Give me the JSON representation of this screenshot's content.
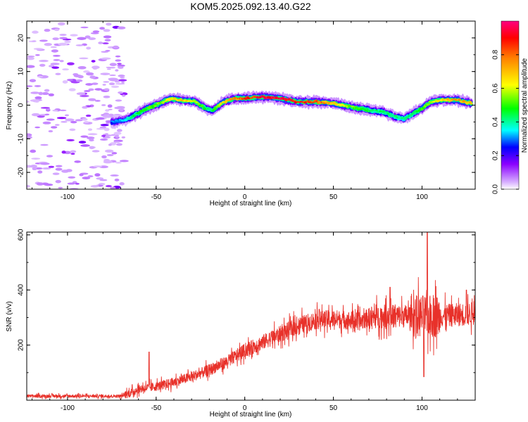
{
  "title": "KOM5.2025.092.13.40.G22",
  "chart_data": [
    {
      "type": "heatmap",
      "xlabel": "Height of straight line (km)",
      "ylabel": "Frequency (Hz)",
      "xlim": [
        -123,
        130
      ],
      "ylim": [
        -25,
        25
      ],
      "xticks": [
        -100,
        -50,
        0,
        50,
        100
      ],
      "yticks": [
        -20,
        -10,
        0,
        10,
        20
      ],
      "colorbar": {
        "label": "Normalized spectral amplitude",
        "range": [
          0,
          1
        ],
        "ticks": [
          0.0,
          0.2,
          0.4,
          0.6,
          0.8
        ]
      },
      "ridge": {
        "x": [
          -75,
          -68,
          -62,
          -55,
          -48,
          -42,
          -35,
          -28,
          -22,
          -18,
          -12,
          -5,
          0,
          10,
          20,
          30,
          40,
          50,
          60,
          70,
          78,
          85,
          90,
          95,
          100,
          105,
          110,
          120,
          128
        ],
        "frequency": [
          -5,
          -4.5,
          -3,
          -1,
          0.5,
          2,
          1.5,
          1,
          -1,
          -1.5,
          1,
          2,
          2,
          2.5,
          2,
          1,
          1,
          0.5,
          -0.5,
          -1.5,
          -2,
          -3.5,
          -4,
          -2.5,
          -1,
          1,
          1.5,
          1.5,
          0.5
        ],
        "strength": [
          0.3,
          0.35,
          0.45,
          0.5,
          0.55,
          0.65,
          0.7,
          0.6,
          0.45,
          0.45,
          0.7,
          0.8,
          0.85,
          0.95,
          0.95,
          0.9,
          0.85,
          0.7,
          0.55,
          0.45,
          0.45,
          0.45,
          0.4,
          0.45,
          0.5,
          0.6,
          0.65,
          0.75,
          0.7
        ]
      },
      "noise_region_x": [
        -123,
        -80
      ]
    },
    {
      "type": "line",
      "xlabel": "Height of straight line (km)",
      "ylabel": "SNR (v/v)",
      "xlim": [
        -123,
        130
      ],
      "ylim": [
        0,
        610
      ],
      "xticks": [
        -100,
        -50,
        0,
        50,
        100
      ],
      "yticks": [
        200,
        400,
        600
      ],
      "color": "#e8312a",
      "trend": {
        "x": [
          -123,
          -70,
          -65,
          -60,
          -50,
          -40,
          -30,
          -20,
          -10,
          0,
          10,
          20,
          30,
          40,
          50,
          60,
          65,
          70,
          80,
          90,
          100,
          110,
          120,
          130
        ],
        "snr": [
          15,
          15,
          25,
          40,
          50,
          65,
          85,
          110,
          140,
          180,
          210,
          240,
          270,
          290,
          295,
          290,
          285,
          300,
          305,
          305,
          305,
          305,
          310,
          315
        ]
      },
      "spikes": [
        {
          "x": -54,
          "snr": 175
        },
        {
          "x": 42,
          "snr": 330
        },
        {
          "x": 103,
          "snr": 610
        },
        {
          "x": 101,
          "snr": 85
        },
        {
          "x": 82,
          "snr": 410
        },
        {
          "x": 125,
          "snr": 400
        }
      ]
    }
  ]
}
